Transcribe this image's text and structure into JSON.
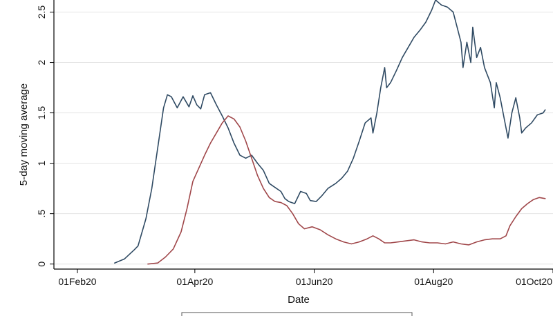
{
  "chart_data": {
    "type": "line",
    "title": "",
    "xlabel": "Date",
    "ylabel": "5-day moving average",
    "xlim": [
      "2020-01-20",
      "2020-10-01"
    ],
    "ylim": [
      -0.05,
      2.62
    ],
    "grid": true,
    "x_ticks": [
      {
        "date": "2020-02-01",
        "label": "01Feb20"
      },
      {
        "date": "2020-04-01",
        "label": "01Apr20"
      },
      {
        "date": "2020-06-01",
        "label": "01Jun20"
      },
      {
        "date": "2020-08-01",
        "label": "01Aug20"
      },
      {
        "date": "2020-10-01",
        "label": "01Oct20"
      }
    ],
    "y_ticks": [
      {
        "value": 0,
        "label": "0"
      },
      {
        "value": 0.5,
        "label": ".5"
      },
      {
        "value": 1,
        "label": "1"
      },
      {
        "value": 1.5,
        "label": "1.5"
      },
      {
        "value": 2,
        "label": "2"
      },
      {
        "value": 2.5,
        "label": "2.5"
      }
    ],
    "series": [
      {
        "color": "#2f4a63",
        "points": [
          [
            "2020-02-20",
            0.01
          ],
          [
            "2020-02-25",
            0.05
          ],
          [
            "2020-03-01",
            0.14
          ],
          [
            "2020-03-03",
            0.18
          ],
          [
            "2020-03-07",
            0.45
          ],
          [
            "2020-03-10",
            0.75
          ],
          [
            "2020-03-13",
            1.15
          ],
          [
            "2020-03-16",
            1.55
          ],
          [
            "2020-03-18",
            1.68
          ],
          [
            "2020-03-20",
            1.66
          ],
          [
            "2020-03-23",
            1.55
          ],
          [
            "2020-03-26",
            1.66
          ],
          [
            "2020-03-29",
            1.56
          ],
          [
            "2020-03-31",
            1.67
          ],
          [
            "2020-04-02",
            1.58
          ],
          [
            "2020-04-04",
            1.54
          ],
          [
            "2020-04-06",
            1.68
          ],
          [
            "2020-04-09",
            1.7
          ],
          [
            "2020-04-12",
            1.58
          ],
          [
            "2020-04-15",
            1.47
          ],
          [
            "2020-04-18",
            1.35
          ],
          [
            "2020-04-21",
            1.2
          ],
          [
            "2020-04-24",
            1.08
          ],
          [
            "2020-04-27",
            1.05
          ],
          [
            "2020-04-30",
            1.08
          ],
          [
            "2020-05-03",
            1.0
          ],
          [
            "2020-05-06",
            0.93
          ],
          [
            "2020-05-09",
            0.8
          ],
          [
            "2020-05-12",
            0.76
          ],
          [
            "2020-05-15",
            0.72
          ],
          [
            "2020-05-17",
            0.65
          ],
          [
            "2020-05-19",
            0.62
          ],
          [
            "2020-05-22",
            0.6
          ],
          [
            "2020-05-25",
            0.72
          ],
          [
            "2020-05-28",
            0.7
          ],
          [
            "2020-05-30",
            0.63
          ],
          [
            "2020-06-02",
            0.62
          ],
          [
            "2020-06-05",
            0.68
          ],
          [
            "2020-06-08",
            0.75
          ],
          [
            "2020-06-12",
            0.8
          ],
          [
            "2020-06-15",
            0.85
          ],
          [
            "2020-06-18",
            0.92
          ],
          [
            "2020-06-21",
            1.05
          ],
          [
            "2020-06-24",
            1.22
          ],
          [
            "2020-06-27",
            1.4
          ],
          [
            "2020-06-30",
            1.45
          ],
          [
            "2020-07-01",
            1.3
          ],
          [
            "2020-07-03",
            1.5
          ],
          [
            "2020-07-05",
            1.75
          ],
          [
            "2020-07-07",
            1.95
          ],
          [
            "2020-07-08",
            1.75
          ],
          [
            "2020-07-10",
            1.8
          ],
          [
            "2020-07-13",
            1.92
          ],
          [
            "2020-07-16",
            2.05
          ],
          [
            "2020-07-19",
            2.15
          ],
          [
            "2020-07-22",
            2.25
          ],
          [
            "2020-07-25",
            2.32
          ],
          [
            "2020-07-28",
            2.4
          ],
          [
            "2020-07-31",
            2.52
          ],
          [
            "2020-08-02",
            2.62
          ],
          [
            "2020-08-05",
            2.57
          ],
          [
            "2020-08-08",
            2.55
          ],
          [
            "2020-08-11",
            2.5
          ],
          [
            "2020-08-13",
            2.35
          ],
          [
            "2020-08-15",
            2.2
          ],
          [
            "2020-08-16",
            1.95
          ],
          [
            "2020-08-18",
            2.2
          ],
          [
            "2020-08-20",
            2.0
          ],
          [
            "2020-08-21",
            2.35
          ],
          [
            "2020-08-23",
            2.05
          ],
          [
            "2020-08-25",
            2.15
          ],
          [
            "2020-08-27",
            1.95
          ],
          [
            "2020-08-30",
            1.8
          ],
          [
            "2020-09-01",
            1.55
          ],
          [
            "2020-09-02",
            1.8
          ],
          [
            "2020-09-04",
            1.65
          ],
          [
            "2020-09-06",
            1.45
          ],
          [
            "2020-09-08",
            1.25
          ],
          [
            "2020-09-10",
            1.5
          ],
          [
            "2020-09-12",
            1.65
          ],
          [
            "2020-09-14",
            1.45
          ],
          [
            "2020-09-15",
            1.3
          ],
          [
            "2020-09-17",
            1.35
          ],
          [
            "2020-09-20",
            1.4
          ],
          [
            "2020-09-23",
            1.48
          ],
          [
            "2020-09-26",
            1.5
          ],
          [
            "2020-09-27",
            1.53
          ]
        ]
      },
      {
        "color": "#a0474a",
        "points": [
          [
            "2020-03-08",
            0.0
          ],
          [
            "2020-03-13",
            0.01
          ],
          [
            "2020-03-17",
            0.07
          ],
          [
            "2020-03-21",
            0.15
          ],
          [
            "2020-03-25",
            0.32
          ],
          [
            "2020-03-28",
            0.55
          ],
          [
            "2020-03-31",
            0.82
          ],
          [
            "2020-04-03",
            0.95
          ],
          [
            "2020-04-06",
            1.08
          ],
          [
            "2020-04-09",
            1.2
          ],
          [
            "2020-04-12",
            1.3
          ],
          [
            "2020-04-15",
            1.4
          ],
          [
            "2020-04-18",
            1.47
          ],
          [
            "2020-04-21",
            1.44
          ],
          [
            "2020-04-24",
            1.36
          ],
          [
            "2020-04-27",
            1.22
          ],
          [
            "2020-04-30",
            1.05
          ],
          [
            "2020-05-03",
            0.88
          ],
          [
            "2020-05-06",
            0.75
          ],
          [
            "2020-05-09",
            0.66
          ],
          [
            "2020-05-12",
            0.62
          ],
          [
            "2020-05-15",
            0.61
          ],
          [
            "2020-05-18",
            0.58
          ],
          [
            "2020-05-21",
            0.5
          ],
          [
            "2020-05-24",
            0.4
          ],
          [
            "2020-05-27",
            0.35
          ],
          [
            "2020-05-31",
            0.37
          ],
          [
            "2020-06-04",
            0.34
          ],
          [
            "2020-06-08",
            0.29
          ],
          [
            "2020-06-12",
            0.25
          ],
          [
            "2020-06-16",
            0.22
          ],
          [
            "2020-06-20",
            0.2
          ],
          [
            "2020-06-24",
            0.22
          ],
          [
            "2020-06-28",
            0.25
          ],
          [
            "2020-07-01",
            0.28
          ],
          [
            "2020-07-04",
            0.25
          ],
          [
            "2020-07-07",
            0.21
          ],
          [
            "2020-07-10",
            0.21
          ],
          [
            "2020-07-14",
            0.22
          ],
          [
            "2020-07-18",
            0.23
          ],
          [
            "2020-07-22",
            0.24
          ],
          [
            "2020-07-26",
            0.22
          ],
          [
            "2020-07-30",
            0.21
          ],
          [
            "2020-08-03",
            0.21
          ],
          [
            "2020-08-07",
            0.2
          ],
          [
            "2020-08-11",
            0.22
          ],
          [
            "2020-08-15",
            0.2
          ],
          [
            "2020-08-19",
            0.19
          ],
          [
            "2020-08-23",
            0.22
          ],
          [
            "2020-08-27",
            0.24
          ],
          [
            "2020-08-31",
            0.25
          ],
          [
            "2020-09-04",
            0.25
          ],
          [
            "2020-09-07",
            0.28
          ],
          [
            "2020-09-09",
            0.38
          ],
          [
            "2020-09-12",
            0.47
          ],
          [
            "2020-09-15",
            0.55
          ],
          [
            "2020-09-18",
            0.6
          ],
          [
            "2020-09-21",
            0.64
          ],
          [
            "2020-09-24",
            0.66
          ],
          [
            "2020-09-27",
            0.65
          ]
        ]
      }
    ]
  }
}
